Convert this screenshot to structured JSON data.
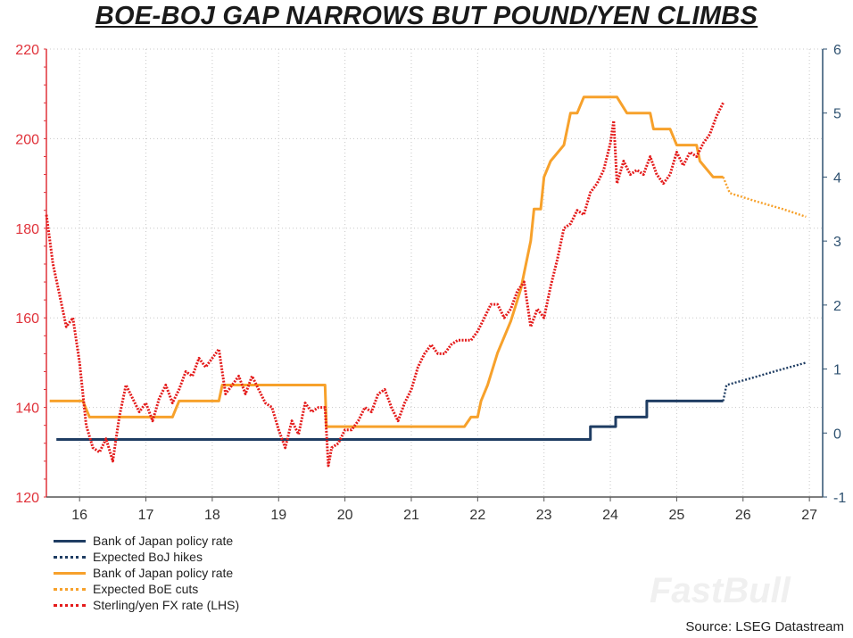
{
  "title": "BOE-BOJ GAP NARROWS BUT POUND/YEN CLIMBS",
  "source": "Source: LSEG Datastream",
  "watermark": "FastBull",
  "colors": {
    "navy": "#1f3d63",
    "orange": "#f7a12b",
    "red": "#e41b1b",
    "axis_left": "#e0323a",
    "axis_right": "#2e5170",
    "grid": "#c8c8c8"
  },
  "legend": [
    {
      "label": "Bank of Japan policy rate",
      "color": "#1f3d63",
      "style": "solid"
    },
    {
      "label": "Expected BoJ hikes",
      "color": "#1f3d63",
      "style": "dotted"
    },
    {
      "label": "Bank of Japan policy rate",
      "color": "#f7a12b",
      "style": "solid"
    },
    {
      "label": "Expected BoE cuts",
      "color": "#f7a12b",
      "style": "dotted"
    },
    {
      "label": "Sterling/yen FX rate (LHS)",
      "color": "#e41b1b",
      "style": "dotted"
    }
  ],
  "chart_data": {
    "type": "line",
    "title": "BOE-BOJ GAP NARROWS BUT POUND/YEN CLIMBS",
    "x_ticks": [
      "16",
      "17",
      "18",
      "19",
      "20",
      "21",
      "22",
      "23",
      "24",
      "25",
      "26",
      "27"
    ],
    "x_range": [
      2015.5,
      2027.2
    ],
    "y_left": {
      "range": [
        120,
        220
      ],
      "ticks": [
        120,
        140,
        160,
        180,
        200,
        220
      ]
    },
    "y_right": {
      "range": [
        -1,
        6
      ],
      "ticks": [
        -1,
        0,
        1,
        2,
        3,
        4,
        5,
        6
      ]
    },
    "grid": true,
    "legend_placement": "bottom-left",
    "series": [
      {
        "name": "Bank of Japan policy rate",
        "axis": "right",
        "style": "solid",
        "color": "#1f3d63",
        "points": [
          [
            2015.65,
            -0.1
          ],
          [
            2023.7,
            -0.1
          ],
          [
            2023.7,
            0.1
          ],
          [
            2024.08,
            0.1
          ],
          [
            2024.08,
            0.25
          ],
          [
            2024.55,
            0.25
          ],
          [
            2024.55,
            0.5
          ],
          [
            2025.7,
            0.5
          ]
        ]
      },
      {
        "name": "Expected BoJ hikes",
        "axis": "right",
        "style": "dotted",
        "color": "#1f3d63",
        "points": [
          [
            2025.7,
            0.5
          ],
          [
            2025.75,
            0.75
          ],
          [
            2026.1,
            0.85
          ],
          [
            2026.5,
            0.97
          ],
          [
            2026.95,
            1.1
          ]
        ]
      },
      {
        "name": "Bank of Japan policy rate",
        "axis": "right",
        "style": "solid",
        "color": "#f7a12b",
        "points": [
          [
            2015.55,
            0.5
          ],
          [
            2016.05,
            0.5
          ],
          [
            2016.15,
            0.25
          ],
          [
            2017.4,
            0.25
          ],
          [
            2017.5,
            0.5
          ],
          [
            2018.1,
            0.5
          ],
          [
            2018.15,
            0.75
          ],
          [
            2019.7,
            0.75
          ],
          [
            2019.72,
            0.1
          ],
          [
            2021.8,
            0.1
          ],
          [
            2021.9,
            0.25
          ],
          [
            2022.0,
            0.25
          ],
          [
            2022.05,
            0.5
          ],
          [
            2022.15,
            0.75
          ],
          [
            2022.3,
            1.25
          ],
          [
            2022.5,
            1.75
          ],
          [
            2022.65,
            2.25
          ],
          [
            2022.8,
            3.0
          ],
          [
            2022.85,
            3.5
          ],
          [
            2022.95,
            3.5
          ],
          [
            2023.0,
            4.0
          ],
          [
            2023.1,
            4.25
          ],
          [
            2023.3,
            4.5
          ],
          [
            2023.4,
            5.0
          ],
          [
            2023.5,
            5.0
          ],
          [
            2023.6,
            5.25
          ],
          [
            2024.1,
            5.25
          ],
          [
            2024.25,
            5.0
          ],
          [
            2024.6,
            5.0
          ],
          [
            2024.65,
            4.75
          ],
          [
            2024.9,
            4.75
          ],
          [
            2025.0,
            4.5
          ],
          [
            2025.3,
            4.5
          ],
          [
            2025.35,
            4.25
          ],
          [
            2025.55,
            4.0
          ],
          [
            2025.7,
            4.0
          ]
        ]
      },
      {
        "name": "Expected BoE cuts",
        "axis": "right",
        "style": "dotted",
        "color": "#f7a12b",
        "points": [
          [
            2025.7,
            4.0
          ],
          [
            2025.8,
            3.75
          ],
          [
            2026.2,
            3.62
          ],
          [
            2026.6,
            3.5
          ],
          [
            2026.95,
            3.38
          ]
        ]
      },
      {
        "name": "Sterling/yen FX rate (LHS)",
        "axis": "left",
        "style": "dotted",
        "color": "#e41b1b",
        "points": [
          [
            2015.5,
            183
          ],
          [
            2015.6,
            172
          ],
          [
            2015.7,
            165
          ],
          [
            2015.8,
            158
          ],
          [
            2015.9,
            160
          ],
          [
            2016.0,
            150
          ],
          [
            2016.05,
            143
          ],
          [
            2016.1,
            136
          ],
          [
            2016.2,
            131
          ],
          [
            2016.3,
            130
          ],
          [
            2016.4,
            133
          ],
          [
            2016.5,
            128
          ],
          [
            2016.6,
            138
          ],
          [
            2016.7,
            145
          ],
          [
            2016.8,
            142
          ],
          [
            2016.9,
            139
          ],
          [
            2017.0,
            141
          ],
          [
            2017.1,
            137
          ],
          [
            2017.2,
            142
          ],
          [
            2017.3,
            145
          ],
          [
            2017.4,
            141
          ],
          [
            2017.5,
            144
          ],
          [
            2017.6,
            148
          ],
          [
            2017.7,
            147
          ],
          [
            2017.8,
            151
          ],
          [
            2017.9,
            149
          ],
          [
            2018.0,
            151
          ],
          [
            2018.1,
            153
          ],
          [
            2018.2,
            143
          ],
          [
            2018.3,
            145
          ],
          [
            2018.4,
            147
          ],
          [
            2018.5,
            143
          ],
          [
            2018.6,
            147
          ],
          [
            2018.7,
            144
          ],
          [
            2018.8,
            141
          ],
          [
            2018.9,
            140
          ],
          [
            2019.0,
            135
          ],
          [
            2019.1,
            131
          ],
          [
            2019.2,
            137
          ],
          [
            2019.3,
            134
          ],
          [
            2019.4,
            141
          ],
          [
            2019.5,
            139
          ],
          [
            2019.6,
            140
          ],
          [
            2019.7,
            140
          ],
          [
            2019.75,
            127
          ],
          [
            2019.8,
            131
          ],
          [
            2019.9,
            132
          ],
          [
            2020.0,
            135
          ],
          [
            2020.1,
            135
          ],
          [
            2020.2,
            137
          ],
          [
            2020.3,
            140
          ],
          [
            2020.4,
            139
          ],
          [
            2020.5,
            143
          ],
          [
            2020.6,
            144
          ],
          [
            2020.7,
            140
          ],
          [
            2020.8,
            137
          ],
          [
            2020.9,
            141
          ],
          [
            2021.0,
            144
          ],
          [
            2021.1,
            149
          ],
          [
            2021.2,
            152
          ],
          [
            2021.3,
            154
          ],
          [
            2021.4,
            152
          ],
          [
            2021.5,
            152
          ],
          [
            2021.6,
            154
          ],
          [
            2021.7,
            155
          ],
          [
            2021.8,
            155
          ],
          [
            2021.9,
            155
          ],
          [
            2022.0,
            157
          ],
          [
            2022.1,
            160
          ],
          [
            2022.2,
            163
          ],
          [
            2022.3,
            163
          ],
          [
            2022.4,
            160
          ],
          [
            2022.5,
            162
          ],
          [
            2022.6,
            166
          ],
          [
            2022.7,
            168
          ],
          [
            2022.8,
            158
          ],
          [
            2022.9,
            162
          ],
          [
            2023.0,
            160
          ],
          [
            2023.1,
            167
          ],
          [
            2023.2,
            173
          ],
          [
            2023.3,
            180
          ],
          [
            2023.4,
            181
          ],
          [
            2023.5,
            184
          ],
          [
            2023.6,
            183
          ],
          [
            2023.7,
            188
          ],
          [
            2023.8,
            190
          ],
          [
            2023.9,
            193
          ],
          [
            2024.0,
            199
          ],
          [
            2024.05,
            204
          ],
          [
            2024.1,
            190
          ],
          [
            2024.2,
            195
          ],
          [
            2024.3,
            192
          ],
          [
            2024.4,
            193
          ],
          [
            2024.5,
            192
          ],
          [
            2024.6,
            196
          ],
          [
            2024.7,
            192
          ],
          [
            2024.8,
            190
          ],
          [
            2024.9,
            192
          ],
          [
            2025.0,
            197
          ],
          [
            2025.1,
            194
          ],
          [
            2025.2,
            197
          ],
          [
            2025.3,
            196
          ],
          [
            2025.4,
            199
          ],
          [
            2025.5,
            201
          ],
          [
            2025.6,
            205
          ],
          [
            2025.7,
            208
          ]
        ]
      }
    ]
  }
}
